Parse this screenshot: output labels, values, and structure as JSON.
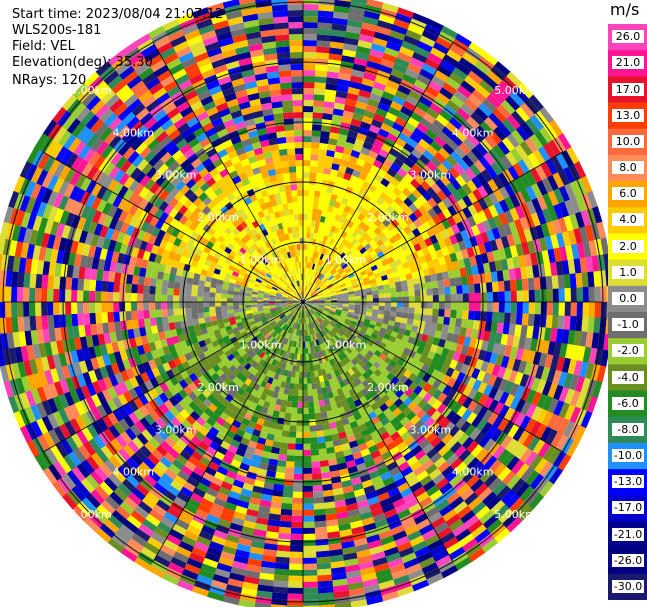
{
  "info": {
    "start_time": "Start time: 2023/08/04 21:07:12",
    "instrument": "WLS200s-181",
    "field": "Field: VEL",
    "elevation": "Elevation(deg): 35.30",
    "nrays": "NRays: 120"
  },
  "colorbar": {
    "title": "m/s",
    "ticks": [
      "26.0",
      "21.0",
      "17.0",
      "13.0",
      "10.0",
      "8.0",
      "6.0",
      "4.0",
      "2.0",
      "1.0",
      "0.0",
      "-1.0",
      "-2.0",
      "-4.0",
      "-6.0",
      "-8.0",
      "-10.0",
      "-13.0",
      "-17.0",
      "-21.0",
      "-26.0",
      "-30.0"
    ],
    "colors": [
      "#ff44bb",
      "#ff1493",
      "#e8132a",
      "#ff3d00",
      "#ff6a3d",
      "#ff8a5a",
      "#ffa500",
      "#ffcc00",
      "#ffff00",
      "#dddd33",
      "#8c8c8c",
      "#6e6e6e",
      "#9acd32",
      "#6b8e23",
      "#228b22",
      "#2e8b57",
      "#1e90ff",
      "#0000ff",
      "#0000cd",
      "#00008b",
      "#000080",
      "#191970"
    ]
  },
  "ring_labels": [
    "1.00km",
    "1.00km",
    "1.00km",
    "1.00km",
    "2.00km",
    "2.00km",
    "2.00km",
    "2.00km",
    "3.00km",
    "3.00km",
    "3.00km",
    "3.00km",
    "4.00km",
    "4.00km",
    "4.00km",
    "4.00km",
    "5.00km",
    "5.00km",
    "5.00km",
    "5.00km"
  ]
}
